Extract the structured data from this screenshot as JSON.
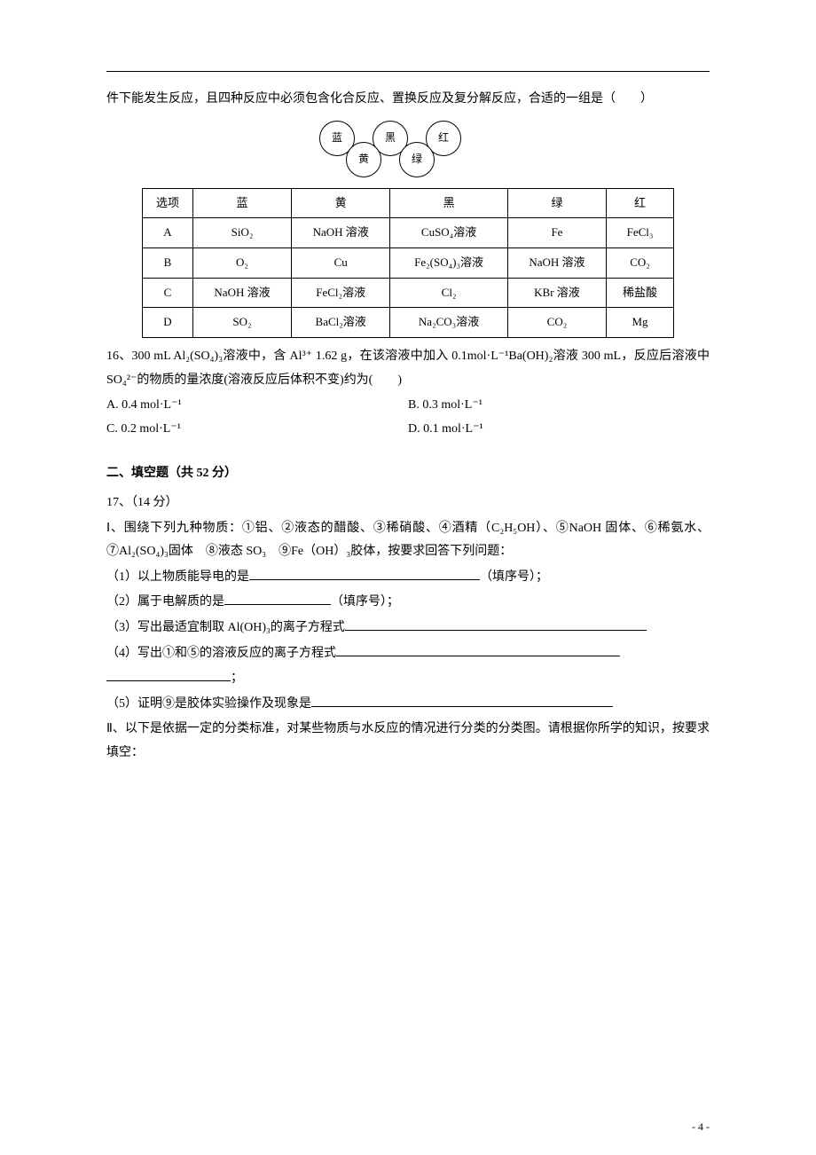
{
  "q15": {
    "tail": "件下能发生反应，且四种反应中必须包含化合反应、置换反应及复分解反应，合适的一组是（　　）",
    "circles": {
      "blue": "蓝",
      "yellow": "黄",
      "black": "黑",
      "green": "绿",
      "red": "红"
    },
    "table": {
      "headers": [
        "选项",
        "蓝",
        "黄",
        "黑",
        "绿",
        "红"
      ],
      "rows": [
        [
          "A",
          "SiO₂",
          "NaOH 溶液",
          "CuSO₄溶液",
          "Fe",
          "FeCl₃"
        ],
        [
          "B",
          "O₂",
          "Cu",
          "Fe₂(SO₄)₃溶液",
          "NaOH 溶液",
          "CO₂"
        ],
        [
          "C",
          "NaOH 溶液",
          "FeCl₂溶液",
          "Cl₂",
          "KBr 溶液",
          "稀盐酸"
        ],
        [
          "D",
          "SO₂",
          "BaCl₂溶液",
          "Na₂CO₃溶液",
          "CO₂",
          "Mg"
        ]
      ]
    }
  },
  "q16": {
    "stem": "16、300 mL Al₂(SO₄)₃溶液中，含 Al³⁺ 1.62 g，在该溶液中加入 0.1mol·L⁻¹Ba(OH)₂溶液 300 mL，反应后溶液中 SO₄²⁻的物质的量浓度(溶液反应后体积不变)约为(　　)",
    "opts": {
      "a": "A. 0.4 mol·L⁻¹",
      "b": "B. 0.3 mol·L⁻¹",
      "c": "C. 0.2 mol·L⁻¹",
      "d": "D. 0.1 mol·L⁻¹"
    }
  },
  "section2": {
    "title": "二、填空题（共 52 分）"
  },
  "q17": {
    "head": "17、（14 分）",
    "part1_intro": "Ⅰ、围绕下列九种物质：①铝、②液态的醋酸、③稀硝酸、④酒精（C₂H₅OH）、⑤NaOH 固体、⑥稀氨水、⑦Al₂(SO₄)₃固体　⑧液态 SO₃　⑨Fe（OH）₃胶体，按要求回答下列问题：",
    "p1": "（1）以上物质能导电的是",
    "p1_tail": "（填序号）；",
    "p2": "（2）属于电解质的是",
    "p2_tail": "（填序号）；",
    "p3": "（3）写出最适宜制取 Al(OH)₃的离子方程式",
    "p4": "（4）写出①和⑤的溶液反应的离子方程式",
    "p4_tail": "；",
    "p5": "（5）证明⑨是胶体实验操作及现象是",
    "part2_intro": "Ⅱ、以下是依据一定的分类标准，对某些物质与水反应的情况进行分类的分类图。请根据你所学的知识，按要求填空："
  },
  "page_number": "- 4 -"
}
